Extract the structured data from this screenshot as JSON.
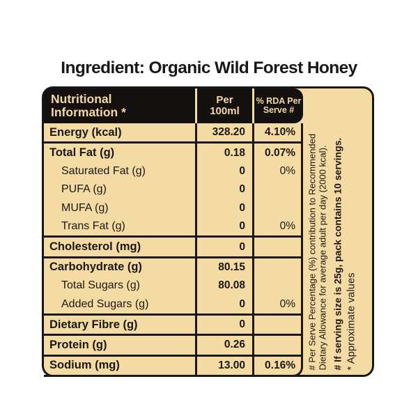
{
  "title": "Ingredient: Organic Wild Forest Honey",
  "colors": {
    "background": "#ffffff",
    "label_cream": "#f4dba4",
    "line_black": "#1a1714",
    "header_bg": "#141110",
    "header_text": "#f2d9a2"
  },
  "table": {
    "header": {
      "col1_line1": "Nutritional",
      "col1_line2": "Information *",
      "col2_line1": "Per",
      "col2_line2": "100ml",
      "col3_line1": "% RDA Per",
      "col3_line2": "Serve #"
    },
    "rows": [
      {
        "label": "Energy (kcal)",
        "per100": "328.20",
        "rda": "4.10%"
      },
      {
        "label": "Total Fat (g)",
        "per100": "0.18",
        "rda": "0.07%"
      },
      {
        "label": "Saturated Fat (g)",
        "per100": "0",
        "rda": "0%"
      },
      {
        "label": "PUFA (g)",
        "per100": "0",
        "rda": ""
      },
      {
        "label": "MUFA (g)",
        "per100": "0",
        "rda": ""
      },
      {
        "label": "Trans Fat (g)",
        "per100": "0",
        "rda": "0%"
      },
      {
        "label": "Cholesterol (mg)",
        "per100": "0",
        "rda": ""
      },
      {
        "label": "Carbohydrate (g)",
        "per100": "80.15",
        "rda": ""
      },
      {
        "label": "Total Sugars (g)",
        "per100": "80.08",
        "rda": ""
      },
      {
        "label": "Added Sugars (g)",
        "per100": "0",
        "rda": "0%"
      },
      {
        "label": "Dietary Fibre (g)",
        "per100": "0",
        "rda": ""
      },
      {
        "label": "Protein (g)",
        "per100": "0.26",
        "rda": ""
      },
      {
        "label": "Sodium (mg)",
        "per100": "13.00",
        "rda": "0.16%"
      }
    ]
  },
  "notes": {
    "line1": "# Per Serve Percentage (%) contribution to Recommended",
    "line2": "Dietary Allowance for average adult per day (2000 kcal).",
    "line3": "# If serving size is 25g, pack contains 10 servings.",
    "line4": "* Approximate values"
  }
}
